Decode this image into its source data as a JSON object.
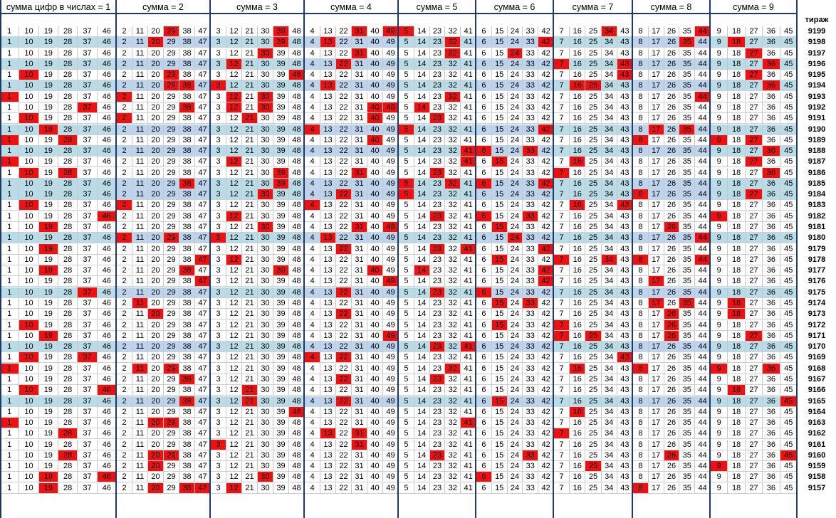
{
  "headers": [
    "сумма цифр в числах = 1",
    "сумма = 2",
    "сумма = 3",
    "сумма = 4",
    "сумма = 5",
    "сумма = 6",
    "сумма = 7",
    "сумма = 8",
    "сумма = 9"
  ],
  "draw_header": "тираж",
  "groups": [
    [
      1,
      10,
      19,
      28,
      37,
      46
    ],
    [
      2,
      11,
      20,
      29,
      38,
      47
    ],
    [
      3,
      12,
      21,
      30,
      39,
      48
    ],
    [
      4,
      13,
      22,
      31,
      40,
      49
    ],
    [
      5,
      14,
      23,
      32,
      41
    ],
    [
      6,
      15,
      24,
      33,
      42
    ],
    [
      7,
      16,
      25,
      34,
      43
    ],
    [
      8,
      17,
      26,
      35,
      44
    ],
    [
      9,
      18,
      27,
      36,
      45
    ]
  ],
  "colors": {
    "hit": "#ee1111",
    "band": "#b8dce8",
    "band_alt": "#bcd4ee",
    "border": "#1f3864"
  },
  "rows": [
    {
      "draw": "9199",
      "band": false,
      "hits": [
        [
          "",
          ""
        ],
        [
          3
        ],
        [
          4
        ],
        [
          3,
          5
        ],
        [
          0
        ],
        [],
        [
          3
        ],
        [
          4
        ],
        []
      ]
    },
    {
      "draw": "9198",
      "band": true,
      "hits": [
        [],
        [
          2
        ],
        [
          4
        ],
        [
          1
        ],
        [
          3
        ],
        [
          4
        ],
        [],
        [
          3
        ],
        [
          1
        ]
      ]
    },
    {
      "draw": "9197",
      "band": false,
      "hits": [
        [],
        [],
        [
          3
        ],
        [
          3
        ],
        [
          3
        ],
        [
          2
        ],
        [],
        [],
        [
          2
        ]
      ]
    },
    {
      "draw": "9196",
      "band": true,
      "hits": [
        [],
        [],
        [
          1
        ],
        [
          2
        ],
        [],
        [],
        [
          0,
          4
        ],
        [],
        [
          3
        ]
      ]
    },
    {
      "draw": "9195",
      "band": false,
      "hits": [
        [
          1
        ],
        [
          3
        ],
        [
          5
        ],
        [],
        [],
        [],
        [
          4
        ],
        [],
        [
          2
        ]
      ]
    },
    {
      "draw": "9194",
      "band": true,
      "hits": [
        [],
        [
          3,
          4
        ],
        [
          0
        ],
        [
          1
        ],
        [],
        [],
        [
          1,
          2
        ],
        [],
        [
          3
        ]
      ]
    },
    {
      "draw": "9193",
      "band": false,
      "hits": [
        [
          0
        ],
        [
          0
        ],
        [
          1,
          3
        ],
        [],
        [
          3
        ],
        [],
        [],
        [
          4
        ],
        []
      ]
    },
    {
      "draw": "9192",
      "band": false,
      "hits": [
        [
          4
        ],
        [
          4
        ],
        [
          1,
          3
        ],
        [
          4,
          5
        ],
        [
          1
        ],
        [],
        [],
        [],
        []
      ]
    },
    {
      "draw": "9191",
      "band": false,
      "hits": [
        [
          1
        ],
        [
          0
        ],
        [
          2
        ],
        [
          4
        ],
        [
          2
        ],
        [],
        [],
        [],
        []
      ]
    },
    {
      "draw": "9190",
      "band": true,
      "hits": [
        [
          2
        ],
        [],
        [],
        [
          0
        ],
        [
          0
        ],
        [
          4
        ],
        [],
        [
          1,
          3
        ],
        []
      ]
    },
    {
      "draw": "9189",
      "band": false,
      "hits": [
        [
          0,
          3
        ],
        [],
        [],
        [
          4
        ],
        [],
        [],
        [],
        [
          0
        ],
        [
          0,
          2
        ]
      ]
    },
    {
      "draw": "9188",
      "band": true,
      "hits": [
        [],
        [],
        [],
        [],
        [
          4
        ],
        [
          0,
          3
        ],
        [],
        [],
        [
          3
        ]
      ]
    },
    {
      "draw": "9187",
      "band": false,
      "hits": [
        [
          0
        ],
        [],
        [
          1
        ],
        [],
        [
          4
        ],
        [
          1
        ],
        [
          1
        ],
        [],
        [
          2
        ]
      ]
    },
    {
      "draw": "9186",
      "band": false,
      "hits": [
        [
          1,
          3
        ],
        [],
        [
          4
        ],
        [
          3
        ],
        [
          2
        ],
        [],
        [
          0
        ],
        [],
        [
          3
        ]
      ]
    },
    {
      "draw": "9185",
      "band": true,
      "hits": [
        [],
        [
          4
        ],
        [
          4
        ],
        [],
        [
          0,
          3
        ],
        [
          0,
          4
        ],
        [],
        [],
        []
      ]
    },
    {
      "draw": "9184",
      "band": true,
      "hits": [
        [],
        [],
        [
          3
        ],
        [
          2
        ],
        [
          0
        ],
        [],
        [],
        [
          0
        ],
        [
          2
        ]
      ]
    },
    {
      "draw": "9183",
      "band": false,
      "hits": [
        [
          1
        ],
        [
          0
        ],
        [],
        [
          0
        ],
        [],
        [],
        [
          1,
          4
        ],
        [],
        []
      ]
    },
    {
      "draw": "9182",
      "band": false,
      "hits": [
        [
          5
        ],
        [],
        [
          1
        ],
        [],
        [
          2
        ],
        [
          0,
          3
        ],
        [],
        [],
        [
          0
        ]
      ]
    },
    {
      "draw": "9181",
      "band": false,
      "hits": [
        [
          2
        ],
        [],
        [
          3
        ],
        [
          3,
          5
        ],
        [],
        [
          1
        ],
        [],
        [
          2
        ],
        []
      ]
    },
    {
      "draw": "9180",
      "band": true,
      "hits": [
        [],
        [
          0,
          3
        ],
        [
          0
        ],
        [
          1
        ],
        [],
        [
          2
        ],
        [],
        [
          4
        ],
        []
      ]
    },
    {
      "draw": "9179",
      "band": false,
      "hits": [
        [
          2
        ],
        [],
        [],
        [
          2
        ],
        [
          2,
          4
        ],
        [
          4
        ],
        [],
        [],
        []
      ]
    },
    {
      "draw": "9178",
      "band": false,
      "hits": [
        [],
        [
          5
        ],
        [
          1
        ],
        [],
        [],
        [
          1
        ],
        [
          0,
          3
        ],
        [
          0,
          4
        ],
        []
      ]
    },
    {
      "draw": "9177",
      "band": false,
      "hits": [
        [
          2
        ],
        [
          4
        ],
        [
          4
        ],
        [
          4
        ],
        [
          1
        ],
        [
          4
        ],
        [],
        [],
        []
      ]
    },
    {
      "draw": "9176",
      "band": false,
      "hits": [
        [],
        [
          5
        ],
        [],
        [
          5
        ],
        [],
        [
          4
        ],
        [],
        [
          1
        ],
        []
      ]
    },
    {
      "draw": "9175",
      "band": true,
      "hits": [
        [
          4
        ],
        [],
        [],
        [
          2
        ],
        [
          2
        ],
        [
          0
        ],
        [],
        [],
        []
      ]
    },
    {
      "draw": "9174",
      "band": false,
      "hits": [
        [],
        [
          1
        ],
        [],
        [],
        [],
        [
          1,
          3
        ],
        [],
        [
          1,
          3
        ],
        [
          1
        ]
      ]
    },
    {
      "draw": "9173",
      "band": false,
      "hits": [
        [],
        [
          2
        ],
        [],
        [
          2
        ],
        [],
        [],
        [],
        [
          2
        ],
        [
          1
        ]
      ]
    },
    {
      "draw": "9172",
      "band": false,
      "hits": [
        [
          1
        ],
        [],
        [],
        [],
        [],
        [
          1
        ],
        [
          0
        ],
        [
          2
        ],
        []
      ]
    },
    {
      "draw": "9171",
      "band": false,
      "hits": [
        [
          2
        ],
        [],
        [],
        [
          5
        ],
        [],
        [],
        [
          0,
          2
        ],
        [
          2
        ],
        [
          2
        ]
      ]
    },
    {
      "draw": "9170",
      "band": true,
      "hits": [
        [],
        [],
        [],
        [],
        [
          2,
          4
        ],
        [],
        [],
        [],
        []
      ]
    },
    {
      "draw": "9169",
      "band": false,
      "hits": [
        [
          1,
          4
        ],
        [],
        [],
        [
          0,
          2
        ],
        [],
        [],
        [
          4
        ],
        [],
        [
          5
        ]
      ]
    },
    {
      "draw": "9168",
      "band": false,
      "hits": [
        [
          0
        ],
        [
          1,
          3
        ],
        [],
        [],
        [
          3
        ],
        [],
        [
          1
        ],
        [
          0
        ],
        [
          0,
          3
        ]
      ]
    },
    {
      "draw": "9167",
      "band": false,
      "hits": [
        [],
        [
          4
        ],
        [],
        [
          2
        ],
        [
          2
        ],
        [],
        [],
        [],
        []
      ]
    },
    {
      "draw": "9166",
      "band": false,
      "hits": [
        [
          1,
          5
        ],
        [],
        [
          2
        ],
        [],
        [],
        [],
        [],
        [],
        [
          1
        ]
      ]
    },
    {
      "draw": "9165",
      "band": true,
      "hits": [
        [],
        [
          4
        ],
        [
          2
        ],
        [
          2
        ],
        [],
        [
          1
        ],
        [],
        [],
        [
          4
        ]
      ]
    },
    {
      "draw": "9164",
      "band": false,
      "hits": [
        [],
        [],
        [
          5
        ],
        [],
        [],
        [],
        [
          1
        ],
        [],
        []
      ]
    },
    {
      "draw": "9163",
      "band": false,
      "hits": [
        [
          0
        ],
        [
          2,
          3
        ],
        [],
        [],
        [
          4
        ],
        [],
        [],
        [],
        []
      ]
    },
    {
      "draw": "9162",
      "band": false,
      "hits": [
        [
          3
        ],
        [],
        [],
        [
          1,
          3
        ],
        [],
        [],
        [
          0
        ],
        [],
        []
      ]
    },
    {
      "draw": "9161",
      "band": false,
      "hits": [
        [],
        [],
        [
          0
        ],
        [
          3
        ],
        [],
        [],
        [],
        [],
        []
      ]
    },
    {
      "draw": "9160",
      "band": false,
      "hits": [
        [
          3
        ],
        [
          2,
          3
        ],
        [],
        [],
        [
          2
        ],
        [
          3
        ],
        [],
        [
          2
        ],
        [
          4
        ]
      ]
    },
    {
      "draw": "9159",
      "band": false,
      "hits": [
        [],
        [
          2
        ],
        [],
        [],
        [],
        [],
        [
          2
        ],
        [],
        [
          0
        ]
      ]
    },
    {
      "draw": "9158",
      "band": false,
      "hits": [
        [
          2,
          5
        ],
        [],
        [
          3
        ],
        [],
        [
          5
        ],
        [
          0
        ],
        [],
        [],
        []
      ]
    },
    {
      "draw": "9157",
      "band": false,
      "hits": [
        [
          2
        ],
        [
          2,
          4,
          5
        ],
        [
          1
        ],
        [],
        [],
        [],
        [],
        [
          0
        ],
        []
      ]
    }
  ]
}
